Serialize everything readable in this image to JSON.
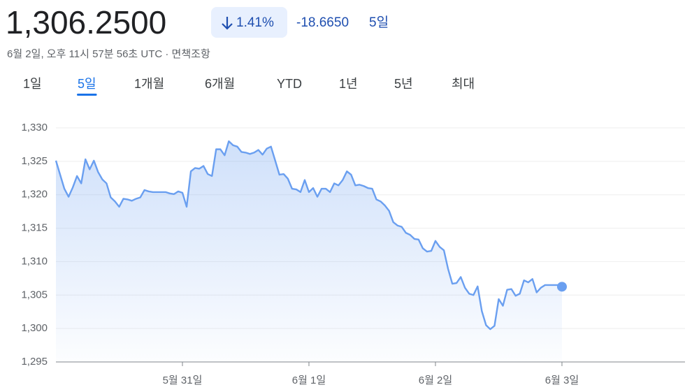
{
  "header": {
    "price": "1,306.2500",
    "change_pct": "1.41%",
    "change_abs": "-18.6650",
    "period": "5일",
    "timestamp": "6월 2일, 오후 11시 57분 56초 UTC · 면책조항"
  },
  "tabs": [
    "1일",
    "5일",
    "1개월",
    "6개월",
    "YTD",
    "1년",
    "5년",
    "최대"
  ],
  "selected_tab": 1,
  "chart_data": {
    "type": "line",
    "color": "#6a9ff0",
    "grid": true,
    "categories": [
      null,
      null,
      null,
      null,
      null,
      null,
      null,
      null,
      null,
      null,
      null,
      null,
      null,
      null,
      null,
      null,
      null,
      null,
      null,
      null,
      null,
      null,
      null,
      null,
      null,
      null,
      null,
      null,
      null,
      null,
      "5월 31일",
      null,
      null,
      null,
      null,
      null,
      null,
      null,
      null,
      null,
      null,
      null,
      null,
      null,
      null,
      null,
      null,
      null,
      null,
      null,
      null,
      null,
      null,
      null,
      null,
      null,
      null,
      null,
      null,
      null,
      "6월 1일",
      null,
      null,
      null,
      null,
      null,
      null,
      null,
      null,
      null,
      null,
      null,
      null,
      null,
      null,
      null,
      null,
      null,
      null,
      null,
      null,
      null,
      null,
      null,
      null,
      null,
      null,
      null,
      null,
      null,
      "6월 2일",
      null,
      null,
      null,
      null,
      null,
      null,
      null,
      null,
      null,
      null,
      null,
      null,
      null,
      null,
      null,
      null,
      null,
      null,
      null,
      null,
      null,
      null,
      null,
      null,
      null,
      null,
      null,
      null,
      null,
      "6월 3일"
    ],
    "values": [
      1325.1,
      1323.0,
      1320.9,
      1319.7,
      1321.1,
      1322.8,
      1321.7,
      1325.3,
      1323.8,
      1325.1,
      1323.4,
      1322.3,
      1321.7,
      1319.6,
      1319.0,
      1318.2,
      1319.4,
      1319.3,
      1319.1,
      1319.4,
      1319.6,
      1320.7,
      1320.5,
      1320.4,
      1320.4,
      1320.4,
      1320.4,
      1320.2,
      1320.1,
      1320.5,
      1320.3,
      1318.2,
      1323.5,
      1324.0,
      1323.9,
      1324.3,
      1323.1,
      1322.8,
      1326.8,
      1326.8,
      1325.9,
      1328.0,
      1327.4,
      1327.2,
      1326.4,
      1326.3,
      1326.1,
      1326.3,
      1326.7,
      1326.0,
      1326.9,
      1327.2,
      1325.1,
      1323.0,
      1323.1,
      1322.4,
      1320.9,
      1320.8,
      1320.4,
      1322.2,
      1320.4,
      1321.0,
      1319.7,
      1320.9,
      1320.9,
      1320.4,
      1321.7,
      1321.4,
      1322.2,
      1323.5,
      1323.0,
      1321.4,
      1321.5,
      1321.3,
      1321.0,
      1320.9,
      1319.3,
      1319.0,
      1318.4,
      1317.6,
      1315.9,
      1315.4,
      1315.2,
      1314.3,
      1314.0,
      1313.4,
      1313.3,
      1312.0,
      1311.5,
      1311.6,
      1313.1,
      1312.2,
      1311.7,
      1308.9,
      1306.7,
      1306.8,
      1307.7,
      1306.1,
      1305.2,
      1305.0,
      1306.3,
      1302.6,
      1300.5,
      1299.9,
      1300.4,
      1304.4,
      1303.4,
      1305.8,
      1305.9,
      1304.9,
      1305.2,
      1307.2,
      1306.9,
      1307.4,
      1305.4,
      1306.1,
      1306.5,
      1306.5,
      1306.5,
      1306.5,
      1306.25
    ],
    "ylim": [
      1295,
      1330
    ],
    "yticks": [
      {
        "value": 1295,
        "label": "1,295"
      },
      {
        "value": 1300,
        "label": "1,300"
      },
      {
        "value": 1305,
        "label": "1,305"
      },
      {
        "value": 1310,
        "label": "1,310"
      },
      {
        "value": 1315,
        "label": "1,315"
      },
      {
        "value": 1320,
        "label": "1,320"
      },
      {
        "value": 1325,
        "label": "1,325"
      },
      {
        "value": 1330,
        "label": "1,330"
      }
    ]
  }
}
